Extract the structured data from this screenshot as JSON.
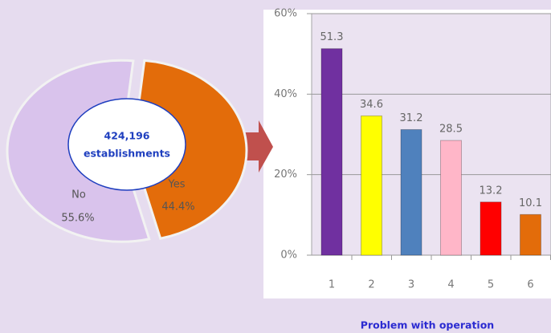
{
  "chart_data": [
    {
      "type": "pie",
      "categories": [
        "No",
        "Yes"
      ],
      "values": [
        55.6,
        44.4
      ],
      "value_labels": [
        "55.6%",
        "44.4%"
      ],
      "colors": [
        "#d9c3ec",
        "#e36c0a"
      ],
      "center_label": [
        "424,196",
        "establishments"
      ]
    },
    {
      "type": "bar",
      "categories": [
        "1",
        "2",
        "3",
        "4",
        "5",
        "6"
      ],
      "values": [
        51.3,
        34.6,
        31.2,
        28.5,
        13.2,
        10.1
      ],
      "colors": [
        "#7030a0",
        "#ffff00",
        "#4f81bd",
        "#ffb6c8",
        "#ff0000",
        "#e36c0a"
      ],
      "xlabel": "Problem with operation",
      "ylim": [
        0,
        60
      ],
      "yticks": [
        {
          "value": 0,
          "label": "0%"
        },
        {
          "value": 20,
          "label": "20%"
        },
        {
          "value": 40,
          "label": "40%"
        },
        {
          "value": 60,
          "label": "60%"
        }
      ],
      "grid": true
    }
  ]
}
